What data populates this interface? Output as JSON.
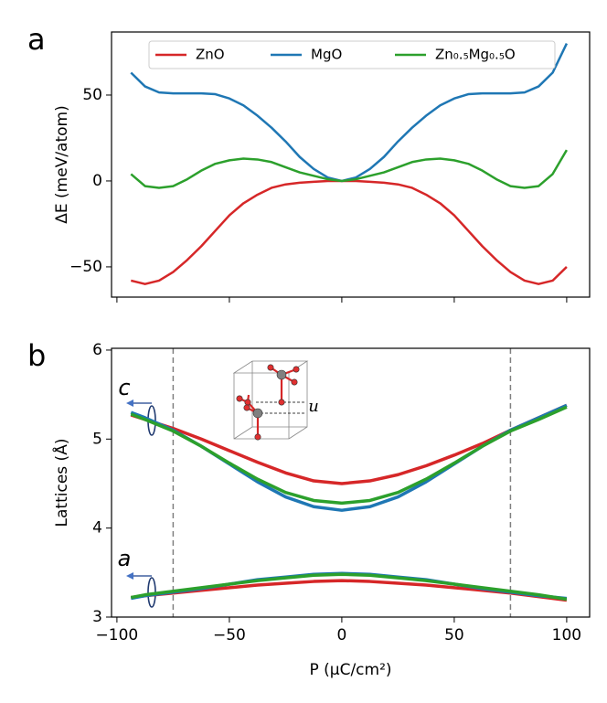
{
  "chart_data": [
    {
      "type": "line",
      "panel_label": "a",
      "ylabel": "ΔE (meV/atom)",
      "x": [
        -93.75,
        -87.5,
        -81.25,
        -75,
        -68.75,
        -62.5,
        -56.25,
        -50,
        -43.75,
        -37.5,
        -31.25,
        -25,
        -18.75,
        -12.5,
        -6.25,
        0,
        6.25,
        12.5,
        18.75,
        25,
        31.25,
        37.5,
        43.75,
        50,
        56.25,
        62.5,
        68.75,
        75,
        81.25,
        87.5,
        93.75,
        100
      ],
      "series": [
        {
          "name": "ZnO",
          "color": "#d62728",
          "values": [
            -58,
            -60,
            -58,
            -53,
            -46,
            -38,
            -29,
            -20,
            -13,
            -8,
            -4,
            -2,
            -1,
            -0.5,
            0,
            0,
            0,
            -0.5,
            -1,
            -2,
            -4,
            -8,
            -13,
            -20,
            -29,
            -38,
            -46,
            -53,
            -58,
            -60,
            -58,
            -50
          ]
        },
        {
          "name": "MgO",
          "color": "#1f77b4",
          "values": [
            63,
            55,
            51.5,
            51,
            51,
            51,
            50.5,
            48,
            44,
            38,
            31,
            23,
            14,
            7,
            2,
            0,
            2,
            7,
            14,
            23,
            31,
            38,
            44,
            48,
            50.5,
            51,
            51,
            51,
            51.5,
            55,
            63,
            80
          ]
        },
        {
          "name": "Zn₀.₅Mg₀.₅O",
          "color": "#2ca02c",
          "values": [
            4,
            -3,
            -4,
            -3,
            1,
            6,
            10,
            12,
            13,
            12.5,
            11,
            8,
            5,
            3,
            1,
            0,
            1,
            3,
            5,
            8,
            11,
            12.5,
            13,
            12,
            10,
            6,
            1,
            -3,
            -4,
            -3,
            4,
            18
          ]
        }
      ],
      "xlim": [
        -102.4,
        110.2
      ],
      "xticks": [
        -100,
        -50,
        0,
        50,
        100
      ],
      "show_xtick_labels": false,
      "ylim": [
        -67.6,
        86.7
      ],
      "yticks": [
        {
          "value": -50,
          "label": "−50"
        },
        0,
        50
      ],
      "legend": "upper center"
    },
    {
      "type": "line",
      "panel_label": "b",
      "ylabel": "Lattices (Å)",
      "xlabel": "P (μC/cm²)",
      "x": [
        -93.75,
        -87.5,
        -75,
        -62.5,
        -50,
        -37.5,
        -25,
        -12.5,
        0,
        12.5,
        25,
        37.5,
        50,
        62.5,
        75,
        87.5,
        100
      ],
      "series": [
        {
          "color": "#d62728",
          "values": [
            5.27,
            5.22,
            5.12,
            5.0,
            4.87,
            4.74,
            4.62,
            4.53,
            4.5,
            4.53,
            4.6,
            4.7,
            4.82,
            4.95,
            5.1,
            5.24,
            5.38
          ]
        },
        {
          "color": "#1f77b4",
          "values": [
            5.3,
            5.24,
            5.1,
            4.92,
            4.72,
            4.52,
            4.35,
            4.24,
            4.2,
            4.24,
            4.35,
            4.52,
            4.72,
            4.92,
            5.1,
            5.24,
            5.38
          ]
        },
        {
          "color": "#2ca02c",
          "values": [
            5.28,
            5.22,
            5.09,
            4.92,
            4.73,
            4.55,
            4.4,
            4.31,
            4.28,
            4.31,
            4.4,
            4.55,
            4.73,
            4.92,
            5.09,
            5.22,
            5.36
          ]
        },
        {
          "color": "#d62728",
          "values": [
            3.22,
            3.24,
            3.27,
            3.3,
            3.33,
            3.36,
            3.38,
            3.4,
            3.41,
            3.4,
            3.38,
            3.36,
            3.33,
            3.3,
            3.27,
            3.23,
            3.19
          ]
        },
        {
          "color": "#1f77b4",
          "values": [
            3.21,
            3.24,
            3.28,
            3.32,
            3.37,
            3.42,
            3.45,
            3.48,
            3.49,
            3.48,
            3.45,
            3.42,
            3.37,
            3.32,
            3.28,
            3.24,
            3.21
          ]
        },
        {
          "color": "#2ca02c",
          "values": [
            3.22,
            3.25,
            3.29,
            3.33,
            3.37,
            3.41,
            3.44,
            3.47,
            3.48,
            3.47,
            3.44,
            3.41,
            3.37,
            3.33,
            3.29,
            3.25,
            3.2
          ]
        }
      ],
      "xlim": [
        -102.4,
        110.2
      ],
      "xticks": [
        {
          "value": -100,
          "label": "−100"
        },
        {
          "value": -50,
          "label": "−50"
        },
        0,
        50,
        100
      ],
      "ylim": [
        3,
        6.02
      ],
      "yticks": [
        3,
        4,
        5,
        6
      ],
      "vlines": [
        -75,
        75
      ],
      "annotations": [
        "c",
        "a",
        "u"
      ]
    }
  ]
}
